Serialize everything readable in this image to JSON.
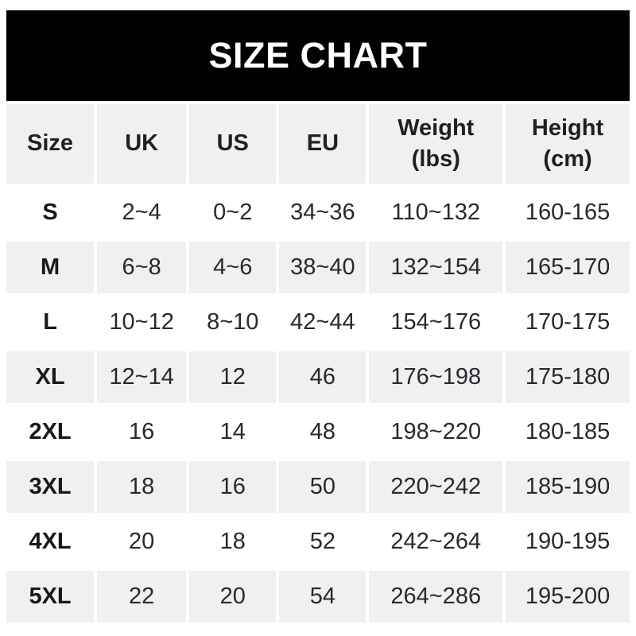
{
  "title": "SIZE CHART",
  "colors": {
    "banner_bg": "#010101",
    "banner_text": "#ffffff",
    "row_alt_bg": "#f0f0f1",
    "row_bg": "#ffffff",
    "text": "#26292e"
  },
  "table": {
    "display_headers": [
      "Size",
      "UK",
      "US",
      "EU",
      "Weight\n(lbs)",
      "Height\n(cm)"
    ]
  },
  "chart_data": {
    "type": "table",
    "title": "SIZE CHART",
    "columns": [
      "Size",
      "UK",
      "US",
      "EU",
      "Weight (lbs)",
      "Height (cm)"
    ],
    "rows": [
      [
        "S",
        "2~4",
        "0~2",
        "34~36",
        "110~132",
        "160-165"
      ],
      [
        "M",
        "6~8",
        "4~6",
        "38~40",
        "132~154",
        "165-170"
      ],
      [
        "L",
        "10~12",
        "8~10",
        "42~44",
        "154~176",
        "170-175"
      ],
      [
        "XL",
        "12~14",
        "12",
        "46",
        "176~198",
        "175-180"
      ],
      [
        "2XL",
        "16",
        "14",
        "48",
        "198~220",
        "180-185"
      ],
      [
        "3XL",
        "18",
        "16",
        "50",
        "220~242",
        "185-190"
      ],
      [
        "4XL",
        "20",
        "18",
        "52",
        "242~264",
        "190-195"
      ],
      [
        "5XL",
        "22",
        "20",
        "54",
        "264~286",
        "195-200"
      ]
    ]
  }
}
